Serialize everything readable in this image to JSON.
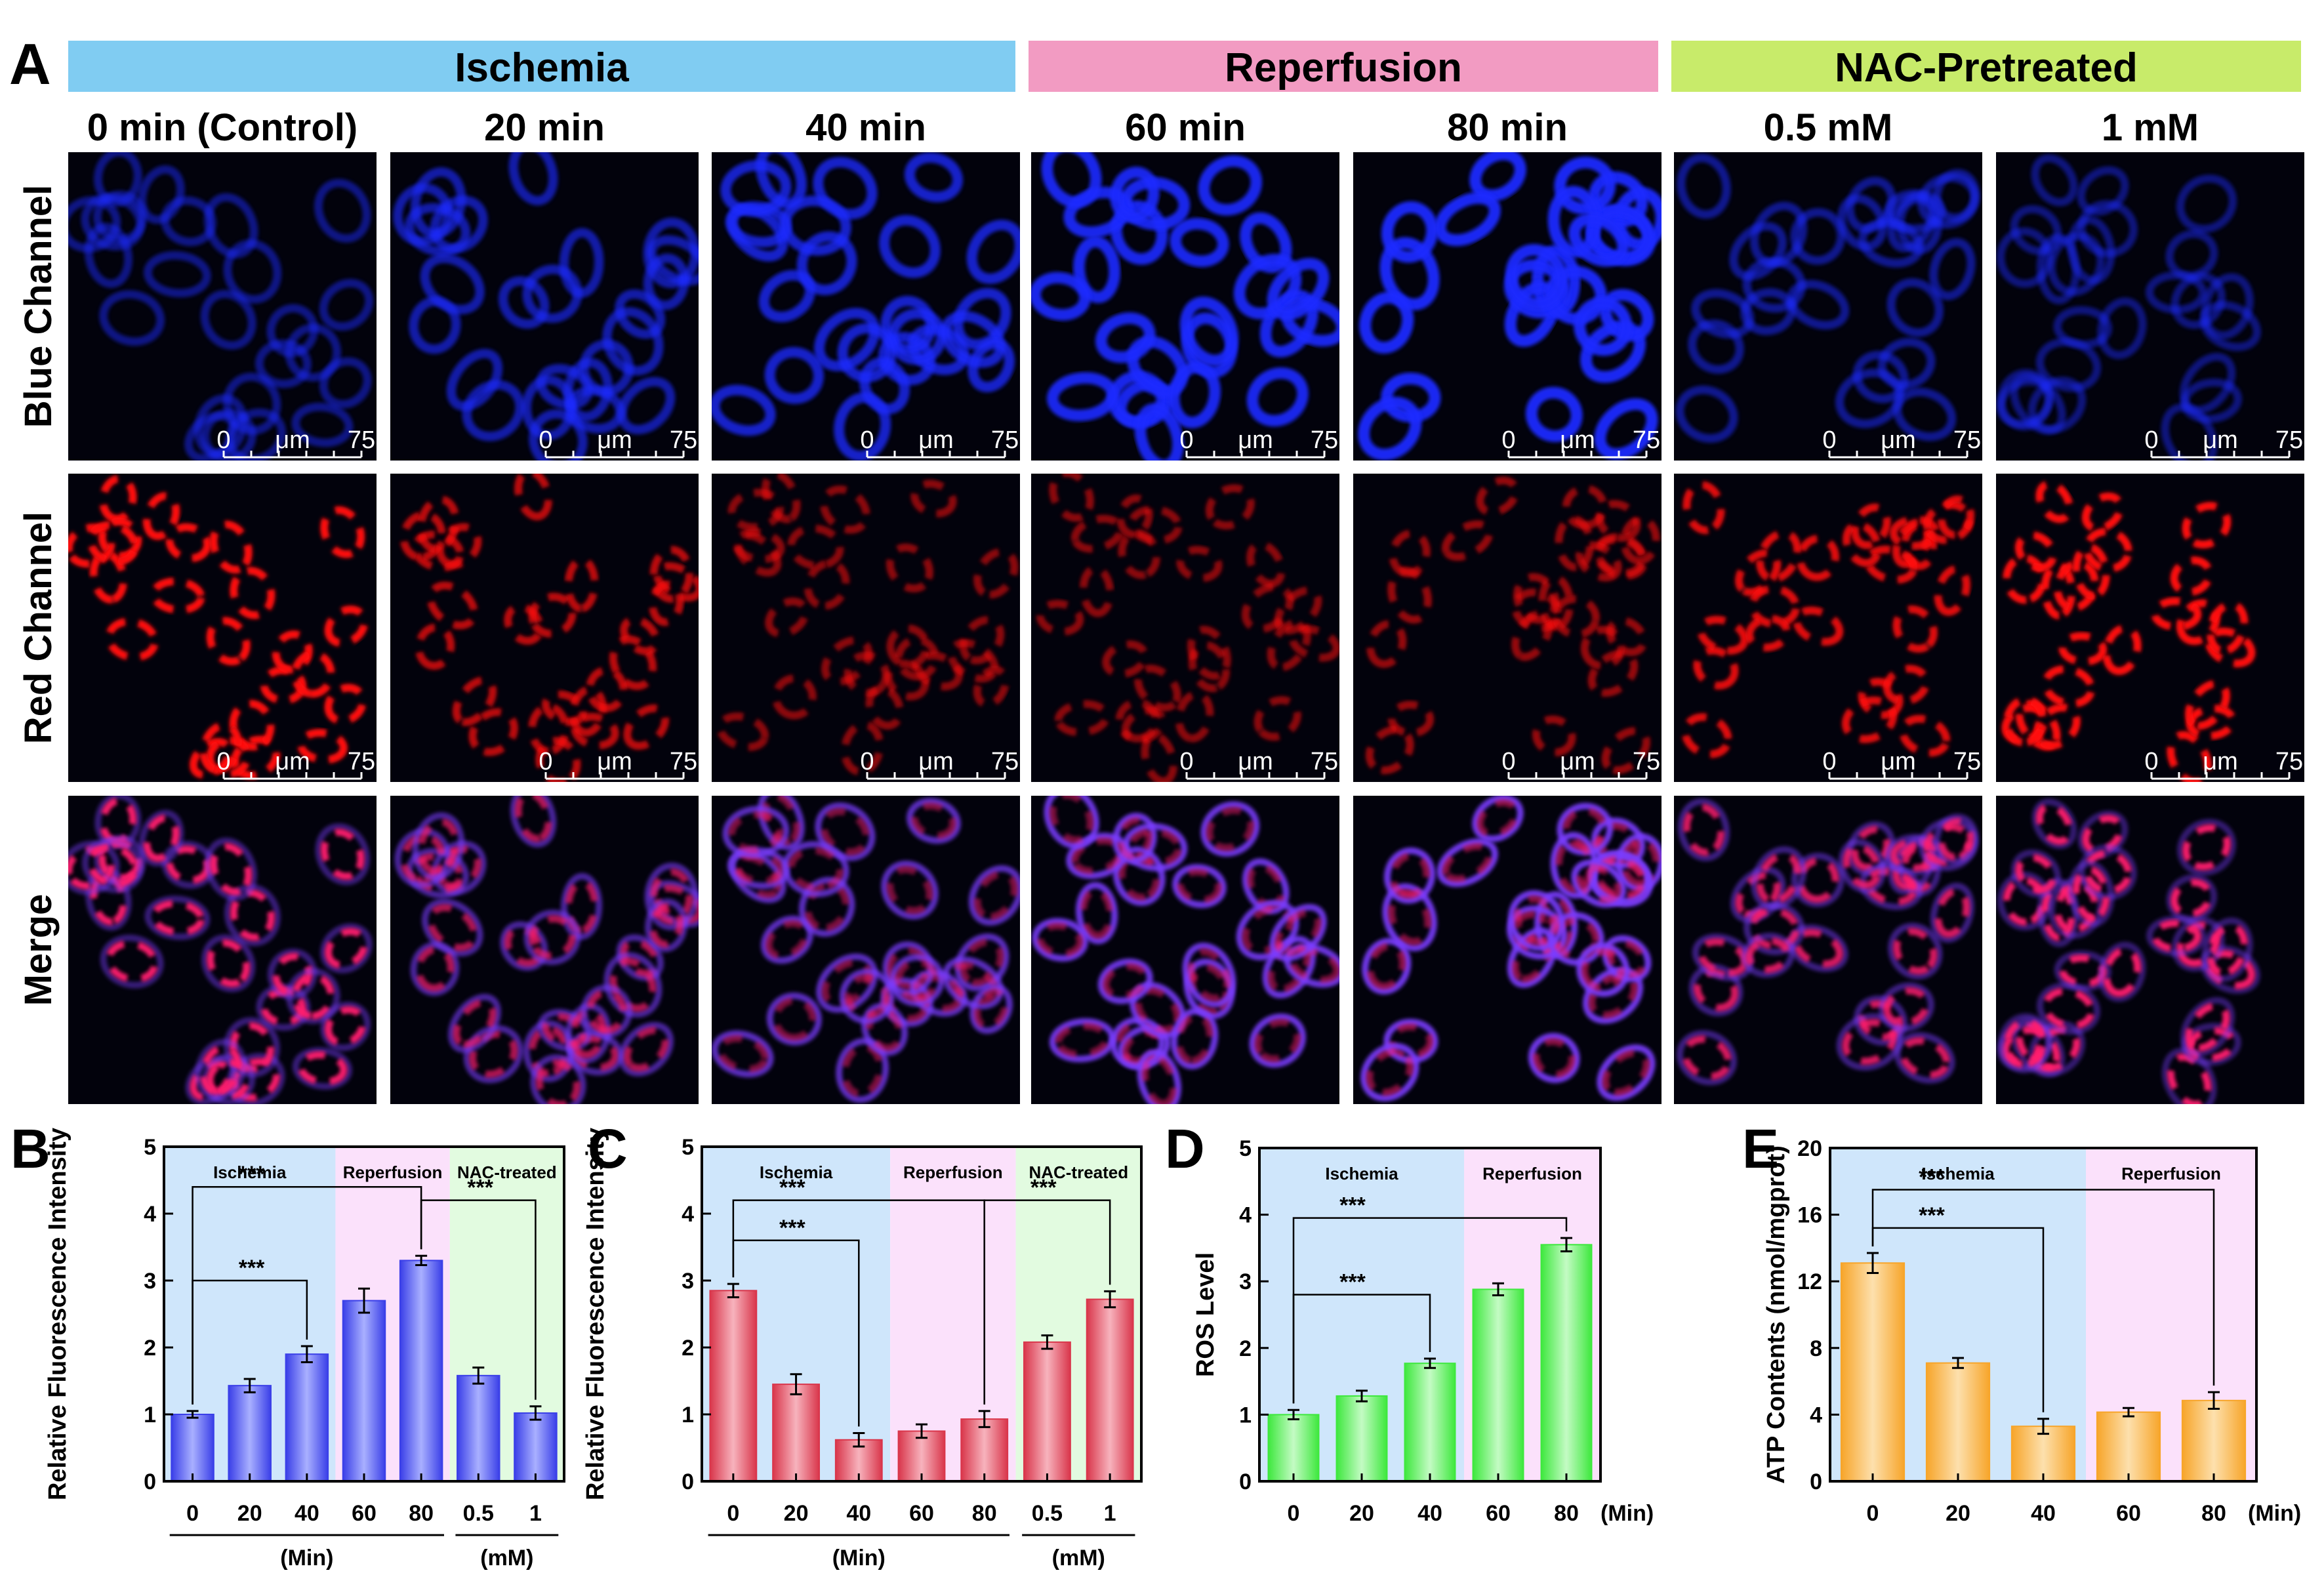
{
  "panel_a": {
    "letter": "A",
    "group_headers": [
      {
        "label": "Ischemia",
        "color": "#80ccf2"
      },
      {
        "label": "Reperfusion",
        "color": "#f29bc2"
      },
      {
        "label": "NAC-Pretreated",
        "color": "#c8eb6a"
      }
    ],
    "columns": [
      "0 min (Control)",
      "20 min",
      "40 min",
      "60 min",
      "80 min",
      "0.5 mM",
      "1 mM"
    ],
    "rows": [
      "Blue Channel",
      "Red Channel",
      "Merge"
    ],
    "scale_bar": {
      "start": "0",
      "unit": "μm",
      "end": "75"
    },
    "blue_intensity": [
      0.35,
      0.55,
      0.75,
      0.95,
      1.0,
      0.4,
      0.3
    ],
    "red_intensity": [
      1.0,
      0.65,
      0.4,
      0.4,
      0.45,
      0.85,
      1.0
    ],
    "colors": {
      "blue_cells": "#1a2bff",
      "red_cells": "#ff1010",
      "merge_red": "#ff1e6e",
      "merge_purple": "#7a3cff"
    }
  },
  "chart_data": [
    {
      "panel": "B",
      "type": "bar",
      "categories": [
        "0",
        "20",
        "40",
        "60",
        "80",
        "0.5",
        "1"
      ],
      "values": [
        1.0,
        1.43,
        1.9,
        2.7,
        3.3,
        1.58,
        1.02
      ],
      "errors": [
        0.05,
        0.1,
        0.12,
        0.18,
        0.07,
        0.12,
        0.1
      ],
      "ylabel": "Relative Fluorescence Intensity",
      "ylim": [
        0,
        5
      ],
      "yticks": [
        "0",
        "1",
        "2",
        "3",
        "4",
        "5"
      ],
      "group_labels": [
        {
          "text": "(Min)",
          "from": 0,
          "to": 4
        },
        {
          "text": "(mM)",
          "from": 5,
          "to": 6
        }
      ],
      "regions": [
        {
          "label": "Ischemia",
          "from": 0,
          "to": 2,
          "color": "#cfe6fb"
        },
        {
          "label": "Reperfusion",
          "from": 3,
          "to": 4,
          "color": "#fbe1fb"
        },
        {
          "label": "NAC-treated",
          "from": 5,
          "to": 6,
          "color": "#e2fbe0"
        }
      ],
      "sig": [
        {
          "from": 0,
          "to": 2,
          "level": 3.0,
          "text": "***"
        },
        {
          "from": 0,
          "to": 4,
          "level": 4.4,
          "text": "***"
        },
        {
          "from": 4,
          "to": 6,
          "level": 4.2,
          "text": "***"
        }
      ],
      "bar_color": "#3a3fe8",
      "bar_highlight": "#a9b0ff",
      "unit_label": ""
    },
    {
      "panel": "C",
      "type": "bar",
      "categories": [
        "0",
        "20",
        "40",
        "60",
        "80",
        "0.5",
        "1"
      ],
      "values": [
        2.85,
        1.45,
        0.62,
        0.75,
        0.93,
        2.08,
        2.72
      ],
      "errors": [
        0.1,
        0.15,
        0.1,
        0.1,
        0.12,
        0.1,
        0.12
      ],
      "ylabel": "Relative Fluorescence Intensity",
      "ylim": [
        0,
        5
      ],
      "yticks": [
        "0",
        "1",
        "2",
        "3",
        "4",
        "5"
      ],
      "group_labels": [
        {
          "text": "(Min)",
          "from": 0,
          "to": 4
        },
        {
          "text": "(mM)",
          "from": 5,
          "to": 6
        }
      ],
      "regions": [
        {
          "label": "Ischemia",
          "from": 0,
          "to": 2,
          "color": "#cfe6fb"
        },
        {
          "label": "Reperfusion",
          "from": 3,
          "to": 4,
          "color": "#fbe1fb"
        },
        {
          "label": "NAC-treated",
          "from": 5,
          "to": 6,
          "color": "#e2fbe0"
        }
      ],
      "sig": [
        {
          "from": 0,
          "to": 2,
          "level": 3.6,
          "text": "***"
        },
        {
          "from": 0,
          "to": 4,
          "level": 4.2,
          "text": "***"
        },
        {
          "from": 4,
          "to": 6,
          "level": 4.2,
          "text": "***"
        }
      ],
      "bar_color": "#d9364b",
      "bar_highlight": "#f7b3bd",
      "unit_label": ""
    },
    {
      "panel": "D",
      "type": "bar",
      "categories": [
        "0",
        "20",
        "40",
        "60",
        "80"
      ],
      "values": [
        1.0,
        1.28,
        1.77,
        2.88,
        3.55
      ],
      "errors": [
        0.07,
        0.08,
        0.07,
        0.09,
        0.1
      ],
      "ylabel": "ROS Level",
      "ylim": [
        0,
        5
      ],
      "yticks": [
        "0",
        "1",
        "2",
        "3",
        "4",
        "5"
      ],
      "group_labels": [],
      "regions": [
        {
          "label": "Ischemia",
          "from": 0,
          "to": 2,
          "color": "#cfe6fb"
        },
        {
          "label": "Reperfusion",
          "from": 3,
          "to": 4,
          "color": "#fbe1fb"
        }
      ],
      "sig": [
        {
          "from": 0,
          "to": 2,
          "level": 2.8,
          "text": "***"
        },
        {
          "from": 0,
          "to": 4,
          "level": 3.95,
          "text": "***"
        }
      ],
      "bar_color": "#3ee83e",
      "bar_highlight": "#c4fbc4",
      "unit_label": "(Min)"
    },
    {
      "panel": "E",
      "type": "bar",
      "categories": [
        "0",
        "20",
        "40",
        "60",
        "80"
      ],
      "values": [
        13.1,
        7.1,
        3.3,
        4.15,
        4.85
      ],
      "errors": [
        0.6,
        0.3,
        0.45,
        0.25,
        0.5
      ],
      "ylabel": "ATP Contents (nmol/mgprot)",
      "ylim": [
        0,
        20
      ],
      "yticks": [
        "0",
        "4",
        "8",
        "12",
        "16",
        "20"
      ],
      "group_labels": [],
      "regions": [
        {
          "label": "Ischemia",
          "from": 0,
          "to": 2,
          "color": "#cfe6fb"
        },
        {
          "label": "Reperfusion",
          "from": 3,
          "to": 4,
          "color": "#fbe1fb"
        }
      ],
      "sig": [
        {
          "from": 0,
          "to": 2,
          "level": 15.2,
          "text": "***"
        },
        {
          "from": 0,
          "to": 4,
          "level": 17.5,
          "text": "***"
        }
      ],
      "bar_color": "#f7a52a",
      "bar_highlight": "#fde0ad",
      "unit_label": "(Min)"
    }
  ]
}
